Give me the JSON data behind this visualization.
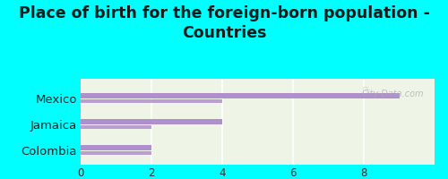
{
  "title": "Place of birth for the foreign-born population -\nCountries",
  "categories": [
    "Mexico",
    "Jamaica",
    "Colombia"
  ],
  "values_main": [
    9.0,
    4.0,
    2.0
  ],
  "values_secondary": [
    4.0,
    2.0,
    2.0
  ],
  "bar_color": "#b090cc",
  "background_color": "#00ffff",
  "chart_bg_color": "#edf4e8",
  "xlim": [
    0,
    10
  ],
  "xticks": [
    0,
    2,
    4,
    6,
    8
  ],
  "watermark": "City-Data.com",
  "title_fontsize": 12.5,
  "label_fontsize": 9.5
}
